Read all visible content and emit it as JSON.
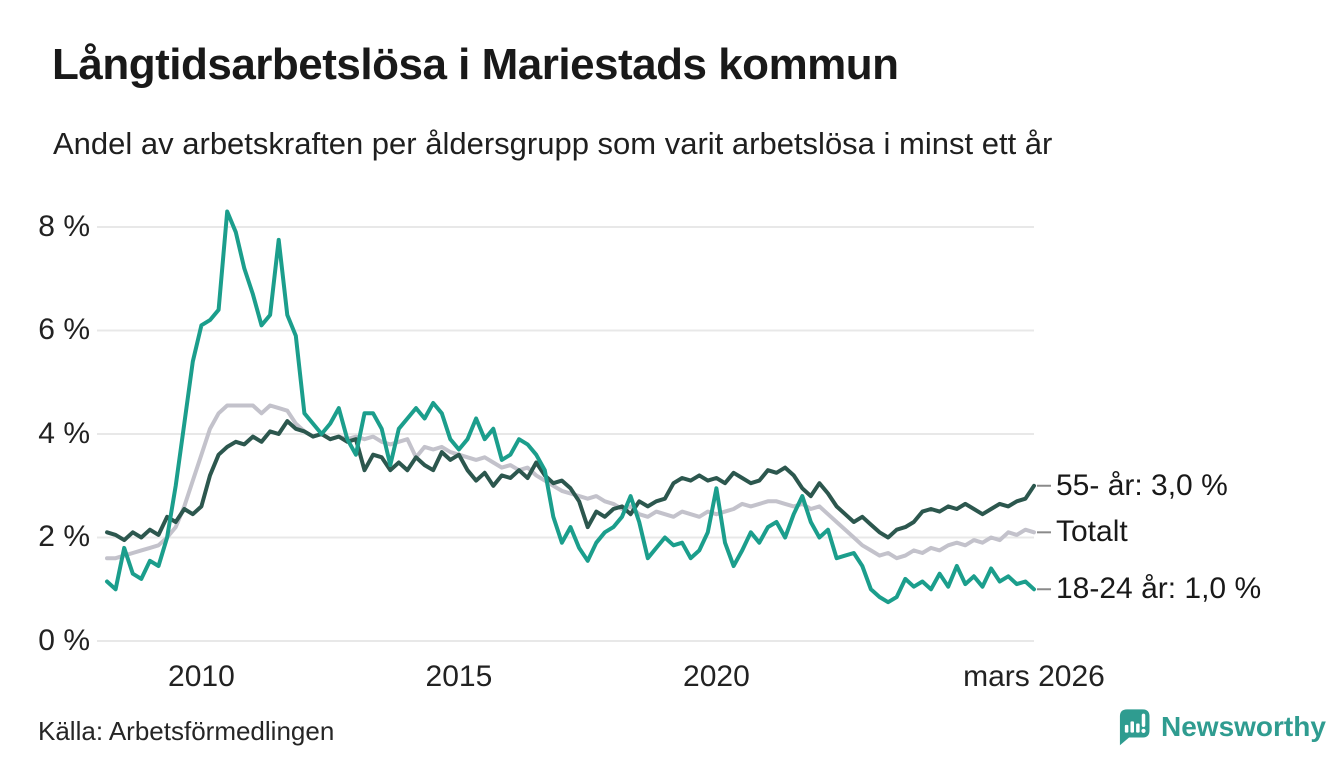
{
  "header": {
    "title": "Långtidsarbetslösa i Mariestads kommun",
    "subtitle": "Andel av arbetskraften per åldersgrupp som varit arbetslösa i minst ett år"
  },
  "footer": {
    "source": "Källa: Arbetsförmedlingen",
    "brand": "Newsworthy"
  },
  "colors": {
    "series_55": "#2c574e",
    "series_total": "#c3c2cb",
    "series_18_24": "#1b9e8c",
    "gridline": "#e8e8e8",
    "tick_dash": "#8a8a8a",
    "brand_teal": "#2f9c90"
  },
  "chart_data": {
    "type": "line",
    "title": "Långtidsarbetslösa i Mariestads kommun",
    "xlabel": "",
    "ylabel": "",
    "unit": "%",
    "grid": true,
    "legend_position": "right-end-labels",
    "x_unit": "decimal_year_monthly_bimonthly_sampled",
    "x_range": [
      2008.1667,
      2026.1667
    ],
    "ylim": [
      0,
      8.6
    ],
    "yticks": [
      {
        "label": "0 %",
        "value": 0
      },
      {
        "label": "2 %",
        "value": 2
      },
      {
        "label": "4 %",
        "value": 4
      },
      {
        "label": "6 %",
        "value": 6
      },
      {
        "label": "8 %",
        "value": 8
      }
    ],
    "xticks": [
      {
        "label": "2010",
        "year": 2010
      },
      {
        "label": "2015",
        "year": 2015
      },
      {
        "label": "2020",
        "year": 2020
      },
      {
        "label": "mars 2026",
        "year": 2026.1667
      }
    ],
    "series": [
      {
        "name": "Totalt",
        "slug": "totalt",
        "color": "#c3c2cb",
        "values": [
          1.6,
          1.6,
          1.65,
          1.7,
          1.75,
          1.8,
          1.85,
          2.0,
          2.2,
          2.6,
          3.1,
          3.6,
          4.1,
          4.4,
          4.55,
          4.55,
          4.55,
          4.55,
          4.4,
          4.55,
          4.5,
          4.45,
          4.2,
          4.05,
          3.95,
          4.0,
          3.9,
          3.95,
          3.9,
          3.95,
          3.9,
          3.95,
          3.85,
          3.8,
          3.85,
          3.9,
          3.55,
          3.75,
          3.7,
          3.75,
          3.65,
          3.6,
          3.55,
          3.5,
          3.55,
          3.45,
          3.35,
          3.4,
          3.3,
          3.35,
          3.2,
          3.1,
          3.0,
          2.9,
          2.85,
          2.8,
          2.75,
          2.8,
          2.7,
          2.65,
          2.55,
          2.6,
          2.45,
          2.4,
          2.5,
          2.45,
          2.4,
          2.5,
          2.45,
          2.4,
          2.5,
          2.45,
          2.5,
          2.55,
          2.65,
          2.6,
          2.65,
          2.7,
          2.7,
          2.65,
          2.6,
          2.65,
          2.55,
          2.6,
          2.45,
          2.3,
          2.15,
          2.0,
          1.85,
          1.75,
          1.65,
          1.7,
          1.6,
          1.65,
          1.75,
          1.7,
          1.8,
          1.75,
          1.85,
          1.9,
          1.85,
          1.95,
          1.9,
          2.0,
          1.95,
          2.1,
          2.05,
          2.15,
          2.1
        ]
      },
      {
        "name": "55- år",
        "slug": "55-ar",
        "color": "#2c574e",
        "values": [
          2.1,
          2.05,
          1.95,
          2.1,
          2.0,
          2.15,
          2.05,
          2.4,
          2.3,
          2.55,
          2.45,
          2.6,
          3.2,
          3.6,
          3.75,
          3.85,
          3.8,
          3.95,
          3.85,
          4.05,
          4.0,
          4.25,
          4.1,
          4.05,
          3.95,
          4.0,
          3.9,
          3.95,
          3.85,
          3.9,
          3.3,
          3.6,
          3.55,
          3.3,
          3.45,
          3.3,
          3.55,
          3.4,
          3.3,
          3.65,
          3.5,
          3.6,
          3.3,
          3.1,
          3.25,
          3.0,
          3.2,
          3.15,
          3.3,
          3.15,
          3.45,
          3.2,
          3.05,
          3.1,
          2.95,
          2.7,
          2.2,
          2.5,
          2.4,
          2.55,
          2.6,
          2.45,
          2.7,
          2.6,
          2.7,
          2.75,
          3.05,
          3.15,
          3.1,
          3.2,
          3.1,
          3.15,
          3.05,
          3.25,
          3.15,
          3.05,
          3.1,
          3.3,
          3.25,
          3.35,
          3.2,
          2.95,
          2.8,
          3.05,
          2.85,
          2.6,
          2.45,
          2.3,
          2.4,
          2.25,
          2.1,
          2.0,
          2.15,
          2.2,
          2.3,
          2.5,
          2.55,
          2.5,
          2.6,
          2.55,
          2.65,
          2.55,
          2.45,
          2.55,
          2.65,
          2.6,
          2.7,
          2.75,
          3.0
        ]
      },
      {
        "name": "18-24 år",
        "slug": "18-24-ar",
        "color": "#1b9e8c",
        "values": [
          1.15,
          1.0,
          1.8,
          1.3,
          1.2,
          1.55,
          1.45,
          2.0,
          3.0,
          4.2,
          5.4,
          6.1,
          6.2,
          6.4,
          8.3,
          7.9,
          7.2,
          6.7,
          6.1,
          6.3,
          7.75,
          6.3,
          5.9,
          4.4,
          4.2,
          4.0,
          4.2,
          4.5,
          3.9,
          3.6,
          4.4,
          4.4,
          4.1,
          3.4,
          4.1,
          4.3,
          4.5,
          4.3,
          4.6,
          4.4,
          3.9,
          3.7,
          3.9,
          4.3,
          3.9,
          4.1,
          3.5,
          3.6,
          3.9,
          3.8,
          3.6,
          3.3,
          2.4,
          1.9,
          2.2,
          1.8,
          1.55,
          1.9,
          2.1,
          2.2,
          2.4,
          2.8,
          2.3,
          1.6,
          1.8,
          2.0,
          1.85,
          1.9,
          1.6,
          1.75,
          2.1,
          2.95,
          1.9,
          1.45,
          1.75,
          2.1,
          1.9,
          2.2,
          2.3,
          2.0,
          2.45,
          2.8,
          2.3,
          2.0,
          2.15,
          1.6,
          1.65,
          1.7,
          1.45,
          1.0,
          0.85,
          0.75,
          0.85,
          1.2,
          1.05,
          1.15,
          1.0,
          1.3,
          1.05,
          1.45,
          1.1,
          1.25,
          1.05,
          1.4,
          1.15,
          1.25,
          1.1,
          1.15,
          1.0
        ]
      }
    ],
    "end_labels": [
      {
        "text": "55- år: 3,0 %",
        "y_value": 3.0
      },
      {
        "text": "Totalt",
        "y_value": 2.1
      },
      {
        "text": "18-24 år: 1,0 %",
        "y_value": 1.0
      }
    ]
  }
}
